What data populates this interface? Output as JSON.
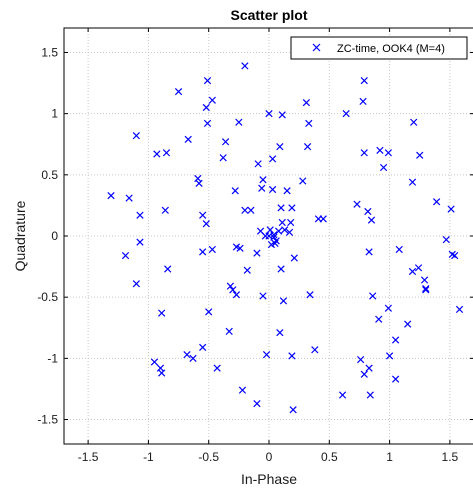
{
  "chart_data": {
    "type": "scatter",
    "title": "Scatter plot",
    "xlabel": "In-Phase",
    "ylabel": "Quadrature",
    "xlim": [
      -1.7,
      1.7
    ],
    "ylim": [
      -1.7,
      1.7
    ],
    "xticks": [
      -1.5,
      -1,
      -0.5,
      0,
      0.5,
      1,
      1.5
    ],
    "xtick_labels": [
      "-1.5",
      "-1",
      "-0.5",
      "0",
      "0.5",
      "1",
      "1.5"
    ],
    "yticks": [
      -1.5,
      -1,
      -0.5,
      0,
      0.5,
      1,
      1.5
    ],
    "ytick_labels": [
      "-1.5",
      "-1",
      "-0.5",
      "0",
      "0.5",
      "1",
      "1.5"
    ],
    "grid": true,
    "legend_position": "top-right",
    "marker_color": "#0000ff",
    "series": [
      {
        "name": "ZC-time, OOK4 (M=4)",
        "marker": "x",
        "points": [
          [
            -0.2,
            1.39
          ],
          [
            -0.51,
            1.27
          ],
          [
            -0.47,
            1.11
          ],
          [
            -0.75,
            1.18
          ],
          [
            -0.52,
            1.05
          ],
          [
            0.79,
            1.27
          ],
          [
            0.78,
            1.1
          ],
          [
            0.31,
            1.09
          ],
          [
            0.0,
            1.0
          ],
          [
            0.64,
            1.0
          ],
          [
            0.11,
            0.99
          ],
          [
            -0.51,
            0.92
          ],
          [
            -0.25,
            0.93
          ],
          [
            1.2,
            0.93
          ],
          [
            0.33,
            0.92
          ],
          [
            -1.1,
            0.82
          ],
          [
            -0.67,
            0.79
          ],
          [
            -0.36,
            0.77
          ],
          [
            0.09,
            0.73
          ],
          [
            0.32,
            0.73
          ],
          [
            -0.93,
            0.67
          ],
          [
            -0.85,
            0.68
          ],
          [
            0.79,
            0.68
          ],
          [
            0.92,
            0.7
          ],
          [
            0.99,
            0.68
          ],
          [
            1.25,
            0.66
          ],
          [
            -0.38,
            0.64
          ],
          [
            0.03,
            0.63
          ],
          [
            -0.09,
            0.59
          ],
          [
            0.95,
            0.56
          ],
          [
            -0.59,
            0.47
          ],
          [
            -0.58,
            0.43
          ],
          [
            -0.05,
            0.46
          ],
          [
            0.28,
            0.45
          ],
          [
            -0.28,
            0.37
          ],
          [
            -0.06,
            0.39
          ],
          [
            0.03,
            0.38
          ],
          [
            0.15,
            0.37
          ],
          [
            1.19,
            0.44
          ],
          [
            -1.31,
            0.33
          ],
          [
            -1.16,
            0.31
          ],
          [
            0.73,
            0.26
          ],
          [
            1.39,
            0.28
          ],
          [
            -0.86,
            0.21
          ],
          [
            -0.2,
            0.21
          ],
          [
            -0.15,
            0.21
          ],
          [
            0.1,
            0.23
          ],
          [
            0.19,
            0.23
          ],
          [
            0.82,
            0.2
          ],
          [
            -1.07,
            0.17
          ],
          [
            -0.55,
            0.17
          ],
          [
            0.41,
            0.14
          ],
          [
            0.45,
            0.14
          ],
          [
            0.85,
            0.13
          ],
          [
            1.51,
            0.22
          ],
          [
            -0.52,
            0.1
          ],
          [
            0.11,
            0.11
          ],
          [
            0.18,
            0.11
          ],
          [
            -0.07,
            0.04
          ],
          [
            0.01,
            0.05
          ],
          [
            0.08,
            0.04
          ],
          [
            0.13,
            0.05
          ],
          [
            0.17,
            0.03
          ],
          [
            0.0,
            0.0
          ],
          [
            0.04,
            -0.01
          ],
          [
            -0.03,
            0.0
          ],
          [
            0.04,
            0.01
          ],
          [
            0.06,
            -0.04
          ],
          [
            0.05,
            -0.06
          ],
          [
            0.02,
            -0.07
          ],
          [
            -0.24,
            -0.1
          ],
          [
            -0.27,
            -0.09
          ],
          [
            -0.1,
            -0.14
          ],
          [
            -0.55,
            -0.13
          ],
          [
            -0.47,
            -0.11
          ],
          [
            0.21,
            -0.18
          ],
          [
            0.83,
            -0.13
          ],
          [
            1.08,
            -0.11
          ],
          [
            1.47,
            -0.03
          ],
          [
            1.52,
            -0.15
          ],
          [
            1.54,
            -0.16
          ],
          [
            -1.07,
            -0.05
          ],
          [
            -1.19,
            -0.16
          ],
          [
            -0.84,
            -0.27
          ],
          [
            -0.18,
            -0.28
          ],
          [
            0.1,
            -0.27
          ],
          [
            1.19,
            -0.29
          ],
          [
            1.24,
            -0.26
          ],
          [
            1.29,
            -0.36
          ],
          [
            1.3,
            -0.43
          ],
          [
            -1.1,
            -0.39
          ],
          [
            -0.32,
            -0.41
          ],
          [
            -0.3,
            -0.44
          ],
          [
            -0.05,
            -0.49
          ],
          [
            0.34,
            -0.48
          ],
          [
            0.86,
            -0.49
          ],
          [
            1.3,
            -0.44
          ],
          [
            -0.27,
            -0.48
          ],
          [
            0.12,
            -0.53
          ],
          [
            0.99,
            -0.59
          ],
          [
            1.58,
            -0.6
          ],
          [
            -0.89,
            -0.63
          ],
          [
            -0.5,
            -0.62
          ],
          [
            0.91,
            -0.68
          ],
          [
            1.15,
            -0.72
          ],
          [
            -0.33,
            -0.78
          ],
          [
            0.09,
            -0.79
          ],
          [
            1.05,
            -0.85
          ],
          [
            -0.55,
            -0.91
          ],
          [
            0.38,
            -0.93
          ],
          [
            -0.68,
            -0.97
          ],
          [
            -0.63,
            -1.0
          ],
          [
            -0.02,
            -0.97
          ],
          [
            0.19,
            -0.98
          ],
          [
            1.0,
            -0.98
          ],
          [
            0.76,
            -1.01
          ],
          [
            -0.95,
            -1.03
          ],
          [
            -0.9,
            -1.08
          ],
          [
            -0.89,
            -1.12
          ],
          [
            -0.43,
            -1.08
          ],
          [
            0.83,
            -1.08
          ],
          [
            0.79,
            -1.13
          ],
          [
            1.05,
            -1.17
          ],
          [
            -0.22,
            -1.26
          ],
          [
            0.61,
            -1.3
          ],
          [
            0.84,
            -1.3
          ],
          [
            -0.1,
            -1.37
          ],
          [
            0.2,
            -1.42
          ]
        ]
      }
    ]
  }
}
